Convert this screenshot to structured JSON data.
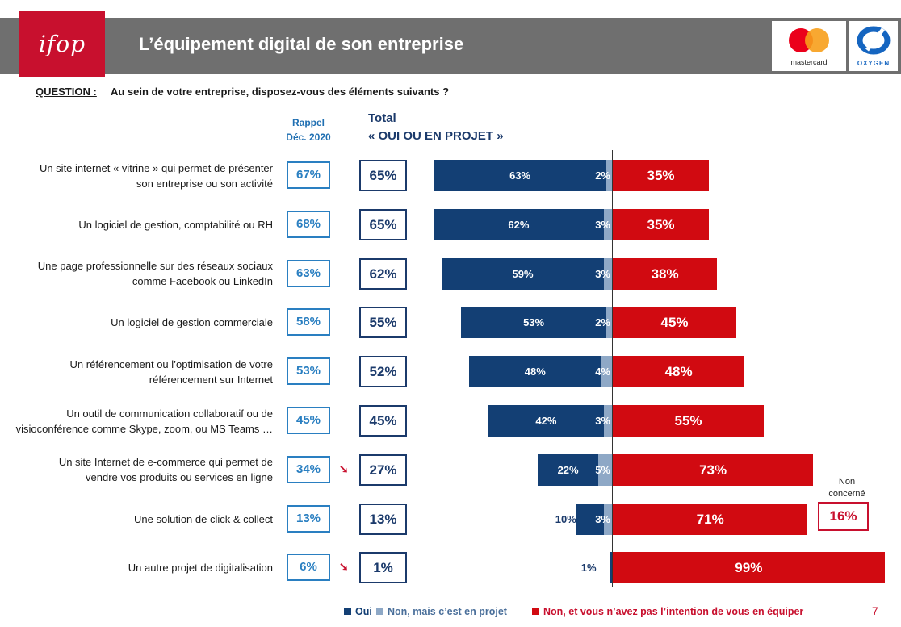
{
  "header": {
    "logo": "ifop",
    "title": "L’équipement digital de son entreprise",
    "brands": [
      "mastercard",
      "OXYGEN"
    ]
  },
  "question": {
    "label": "QUESTION :",
    "text": "Au sein de votre entreprise, disposez-vous des éléments suivants ?"
  },
  "columns": {
    "rappel_line1": "Rappel",
    "rappel_line2": "Déc. 2020",
    "total_line1": "Total",
    "total_line2": "« OUI OU EN PROJET »"
  },
  "chart_data": {
    "type": "bar",
    "orientation": "horizontal-diverging",
    "categories": [
      "Un site internet « vitrine » qui permet de présenter son entreprise ou son activité",
      "Un logiciel de gestion, comptabilité ou RH",
      "Une page professionnelle sur des réseaux sociaux comme Facebook ou LinkedIn",
      "Un logiciel de gestion commerciale",
      "Un référencement ou l’optimisation de votre référencement sur Internet",
      "Un outil de communication collaboratif ou de visioconférence comme Skype, zoom, ou MS Teams …",
      "Un site Internet de e-commerce qui permet de vendre vos produits ou services en ligne",
      "Une solution de click & collect",
      "Un autre projet de digitalisation"
    ],
    "category_lines": [
      [
        "Un site internet « vitrine » qui permet de présenter",
        "son entreprise ou son activité"
      ],
      [
        "Un logiciel de gestion, comptabilité ou RH"
      ],
      [
        "Une page professionnelle sur des réseaux sociaux",
        "comme Facebook ou LinkedIn"
      ],
      [
        "Un logiciel de gestion commerciale"
      ],
      [
        "Un référencement ou l’optimisation de votre",
        "référencement sur Internet"
      ],
      [
        "Un outil de communication collaboratif ou de",
        "visioconférence comme Skype, zoom, ou MS Teams …"
      ],
      [
        "Un site Internet de e-commerce qui permet de",
        "vendre vos produits ou services en ligne"
      ],
      [
        "Une solution de click & collect"
      ],
      [
        "Un autre projet de digitalisation"
      ]
    ],
    "rappel_dec_2020": [
      "67%",
      "68%",
      "63%",
      "58%",
      "53%",
      "45%",
      "34%",
      "13%",
      "6%"
    ],
    "trend_down": [
      false,
      false,
      false,
      false,
      false,
      false,
      true,
      false,
      true
    ],
    "total_oui_ou_en_projet": [
      "65%",
      "65%",
      "62%",
      "55%",
      "52%",
      "45%",
      "27%",
      "13%",
      "1%"
    ],
    "series": [
      {
        "name": "Oui",
        "color": "#133f74",
        "values": [
          63,
          62,
          59,
          53,
          48,
          42,
          22,
          10,
          1
        ]
      },
      {
        "name": "Non, mais c’est en projet",
        "color": "#8ea8c6",
        "values": [
          2,
          3,
          3,
          2,
          4,
          3,
          5,
          3,
          0
        ]
      },
      {
        "name": "Non, et vous n’avez pas l’intention de vous en équiper",
        "color": "#d10a11",
        "values": [
          35,
          35,
          38,
          45,
          48,
          55,
          73,
          71,
          99
        ]
      }
    ],
    "non_concerne": {
      "label_line1": "Non",
      "label_line2": "concerné",
      "category_index": 7,
      "value": "16%"
    }
  },
  "legend": {
    "items": [
      {
        "label": "Oui",
        "color": "#133f74"
      },
      {
        "label": "Non, mais c’est en projet",
        "color": "#8ea8c6"
      },
      {
        "label": "Non, et vous n’avez pas l’intention de vous en équiper",
        "color": "#d10a11"
      }
    ]
  },
  "page_number": "7"
}
